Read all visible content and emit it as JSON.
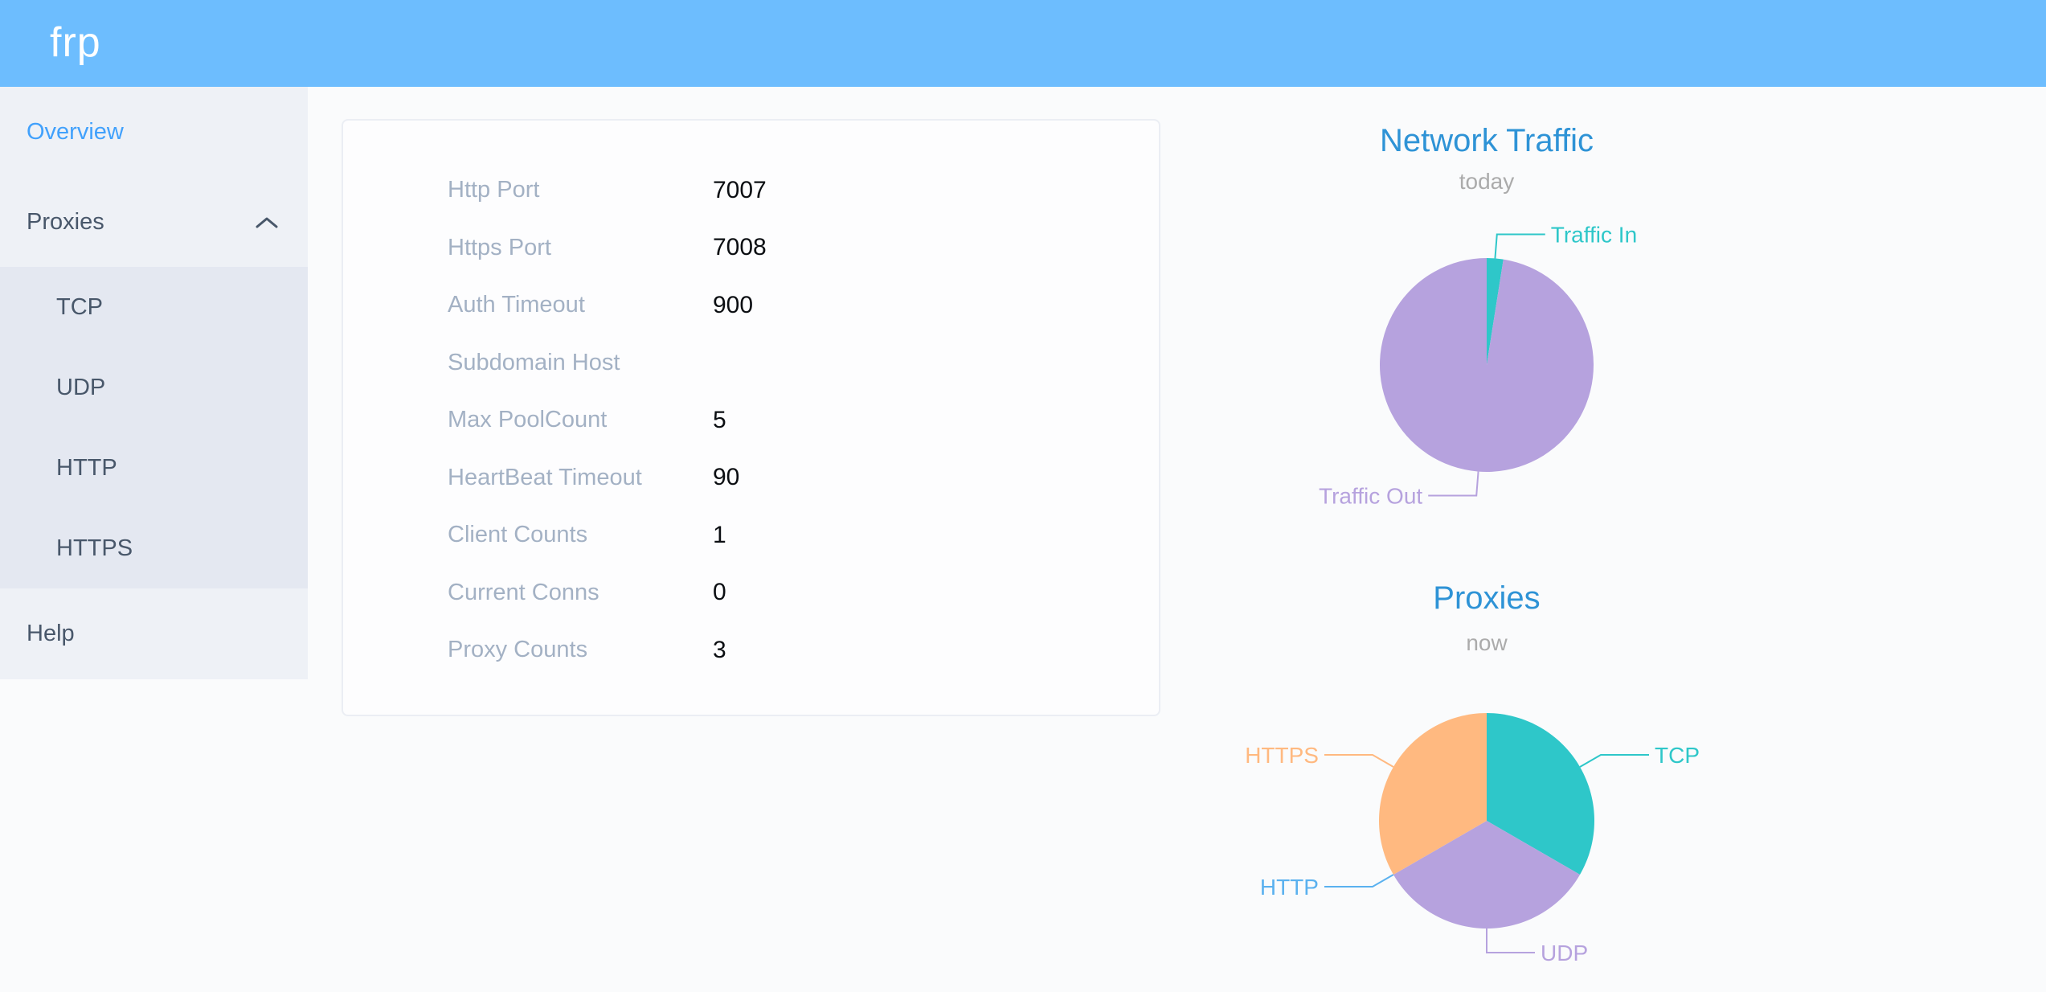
{
  "app": {
    "logo_text": "frp"
  },
  "sidebar": {
    "items": [
      {
        "label": "Overview",
        "active": true
      },
      {
        "label": "Proxies",
        "expanded": true,
        "children": [
          "TCP",
          "UDP",
          "HTTP",
          "HTTPS"
        ]
      },
      {
        "label": "Help"
      }
    ]
  },
  "overview": {
    "rows": [
      {
        "label": "Http Port",
        "value": "7007"
      },
      {
        "label": "Https Port",
        "value": "7008"
      },
      {
        "label": "Auth Timeout",
        "value": "900"
      },
      {
        "label": "Subdomain Host",
        "value": ""
      },
      {
        "label": "Max PoolCount",
        "value": "5"
      },
      {
        "label": "HeartBeat Timeout",
        "value": "90"
      },
      {
        "label": "Client Counts",
        "value": "1"
      },
      {
        "label": "Current Conns",
        "value": "0"
      },
      {
        "label": "Proxy Counts",
        "value": "3"
      }
    ]
  },
  "chart_data": [
    {
      "type": "pie",
      "title": "Network Traffic",
      "subtitle": "today",
      "start_angle": 90,
      "direction": "clockwise",
      "legend_position": "none",
      "labels": "outside-leader-lines",
      "series": [
        {
          "name": "Traffic In",
          "value": 2.5,
          "color": "#2ec7c9"
        },
        {
          "name": "Traffic Out",
          "value": 97.5,
          "color": "#b6a2de"
        }
      ]
    },
    {
      "type": "pie",
      "title": "Proxies",
      "subtitle": "now",
      "start_angle": 90,
      "direction": "clockwise",
      "legend_position": "none",
      "labels": "outside-leader-lines",
      "series": [
        {
          "name": "TCP",
          "value": 1,
          "color": "#2ec7c9"
        },
        {
          "name": "UDP",
          "value": 1,
          "color": "#b6a2de"
        },
        {
          "name": "HTTP",
          "value": 0,
          "color": "#5ab1ef"
        },
        {
          "name": "HTTPS",
          "value": 1,
          "color": "#ffb980"
        }
      ]
    }
  ],
  "colors": {
    "header": "#6dbdfe",
    "sidebar_bg": "#eef1f6",
    "submenu_bg": "#e4e8f1",
    "menu_text": "#48576a",
    "menu_active": "#41a1fc",
    "chart_title": "#2e93d6",
    "chart_subtitle": "#ababab",
    "config_label": "#a3b1c4",
    "config_value": "#0b0e12"
  }
}
